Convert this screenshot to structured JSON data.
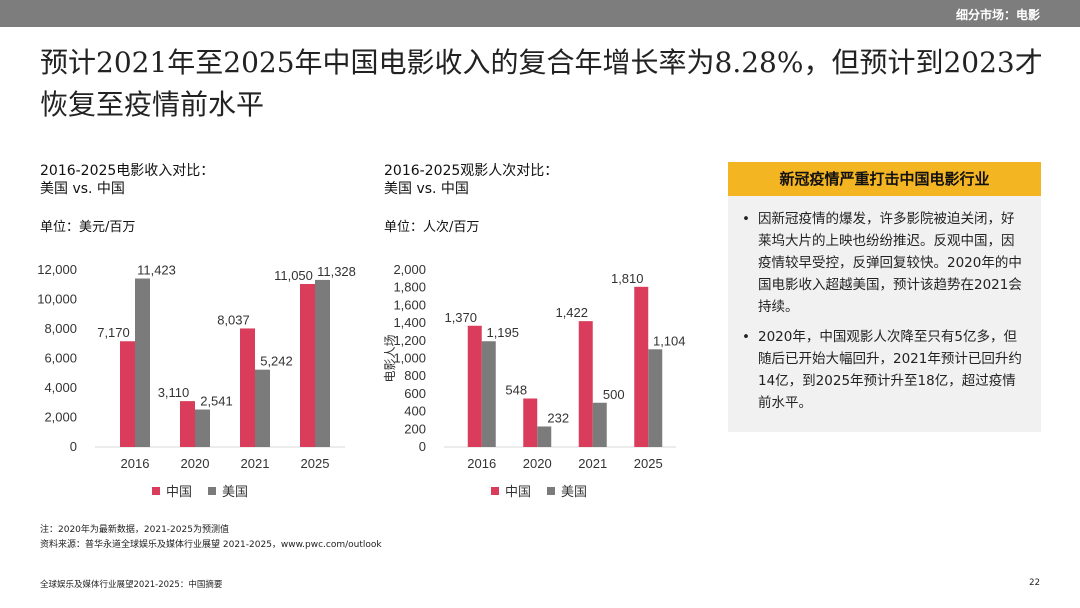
{
  "header": {
    "section": "细分市场：电影"
  },
  "title": "预计2021年至2025年中国电影收入的复合年增长率为8.28%，但预计到2023才恢复至疫情前水平",
  "colors": {
    "china": "#d93d5b",
    "usa": "#7b7b7b",
    "accent": "#f4b523"
  },
  "chart1": {
    "title_line1": "2016-2025电影收入对比：",
    "title_line2": "美国 vs. 中国",
    "unit": "单位：美元/百万",
    "legend_china": "中国",
    "legend_usa": "美国"
  },
  "chart2": {
    "title_line1": "2016-2025观影人次对比：",
    "title_line2": "美国 vs. 中国",
    "unit": "单位：人次/百万",
    "legend_china": "中国",
    "legend_usa": "美国"
  },
  "chart_data": [
    {
      "type": "bar",
      "categories": [
        "2016",
        "2020",
        "2021",
        "2025"
      ],
      "series": [
        {
          "name": "中国",
          "values": [
            7170,
            3110,
            8037,
            11050
          ],
          "labels": [
            "7,170",
            "3,110",
            "8,037",
            "11,050"
          ]
        },
        {
          "name": "美国",
          "values": [
            11423,
            2541,
            5242,
            11328
          ],
          "labels": [
            "11,423",
            "2,541",
            "5,242",
            "11,328"
          ]
        }
      ],
      "ylim": [
        0,
        12000
      ],
      "yticks": [
        "0",
        "2,000",
        "4,000",
        "6,000",
        "8,000",
        "10,000",
        "12,000"
      ],
      "ylabel": "",
      "legend": "bottom"
    },
    {
      "type": "bar",
      "categories": [
        "2016",
        "2020",
        "2021",
        "2025"
      ],
      "series": [
        {
          "name": "中国",
          "values": [
            1370,
            548,
            1422,
            1810
          ],
          "labels": [
            "1,370",
            "548",
            "1,422",
            "1,810"
          ]
        },
        {
          "name": "美国",
          "values": [
            1195,
            232,
            500,
            1104
          ],
          "labels": [
            "1,195",
            "232",
            "500",
            "1,104"
          ]
        }
      ],
      "ylim": [
        0,
        2000
      ],
      "yticks": [
        "0",
        "200",
        "400",
        "600",
        "800",
        "1,000",
        "1,200",
        "1,400",
        "1,600",
        "1,800",
        "2,000"
      ],
      "ylabel": "电影人场",
      "legend": "bottom"
    }
  ],
  "sidebox": {
    "header": "新冠疫情严重打击中国电影行业",
    "bullets": [
      "因新冠疫情的爆发，许多影院被迫关闭，好莱坞大片的上映也纷纷推迟。反观中国，因疫情较早受控，反弹回复较快。2020年的中国电影收入超越美国，预计该趋势在2021会持续。",
      "2020年，中国观影人次降至只有5亿多，但随后已开始大幅回升，2021年预计已回升约14亿，到2025年预计升至18亿，超过疫情前水平。"
    ]
  },
  "notes": {
    "note": "注：2020年为最新数据，2021-2025为预测值",
    "source": "资料来源：普华永道全球娱乐及媒体行业展望 2021-2025，www.pwc.com/outlook"
  },
  "footer": {
    "left": "全球娱乐及媒体行业展望2021-2025：中国摘要",
    "page": "22"
  }
}
